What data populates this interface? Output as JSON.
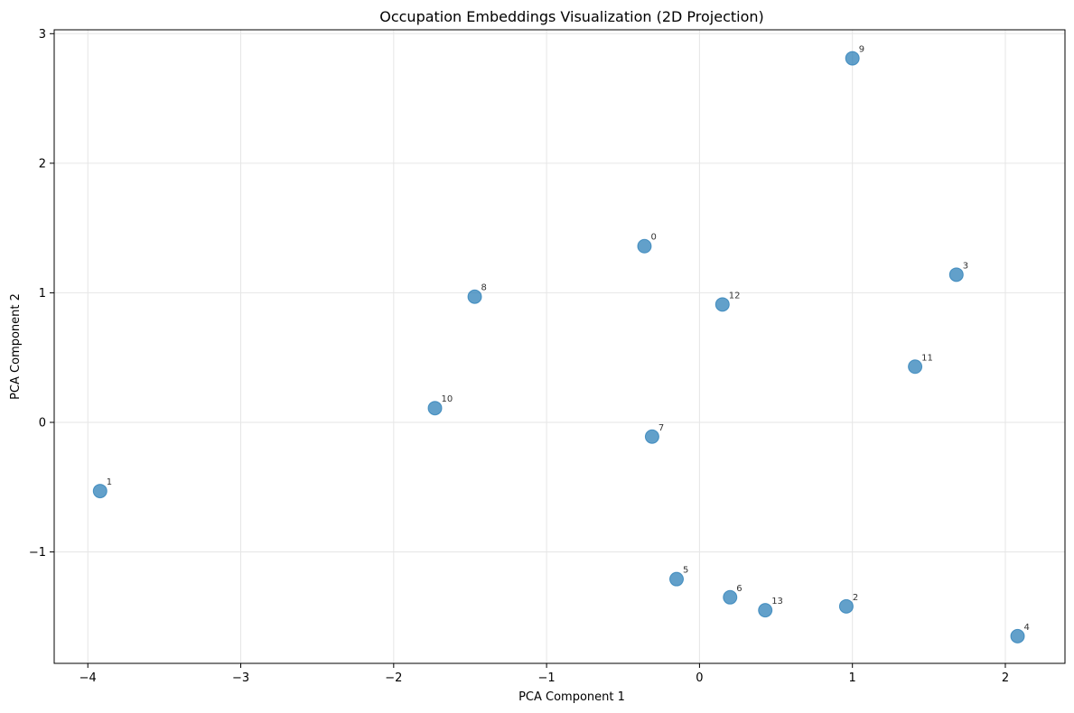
{
  "chart_data": {
    "type": "scatter",
    "title": "Occupation Embeddings Visualization (2D Projection)",
    "xlabel": "PCA Component 1",
    "ylabel": "PCA Component 2",
    "xlim": [
      -4.22,
      2.39
    ],
    "ylim": [
      -1.86,
      3.03
    ],
    "xticks": [
      -4,
      -3,
      -2,
      -1,
      0,
      1,
      2
    ],
    "yticks": [
      -1,
      0,
      1,
      2,
      3
    ],
    "xtick_labels": [
      "−4",
      "−3",
      "−2",
      "−1",
      "0",
      "1",
      "2"
    ],
    "ytick_labels": [
      "−1",
      "0",
      "1",
      "2",
      "3"
    ],
    "grid": true,
    "point_color": "#1f77b4",
    "points": [
      {
        "label": "0",
        "x": -0.36,
        "y": 1.36
      },
      {
        "label": "1",
        "x": -3.92,
        "y": -0.53
      },
      {
        "label": "2",
        "x": 0.96,
        "y": -1.42
      },
      {
        "label": "3",
        "x": 1.68,
        "y": 1.14
      },
      {
        "label": "4",
        "x": 2.08,
        "y": -1.65
      },
      {
        "label": "5",
        "x": -0.15,
        "y": -1.21
      },
      {
        "label": "6",
        "x": 0.2,
        "y": -1.35
      },
      {
        "label": "7",
        "x": -0.31,
        "y": -0.11
      },
      {
        "label": "8",
        "x": -1.47,
        "y": 0.97
      },
      {
        "label": "9",
        "x": 1.0,
        "y": 2.81
      },
      {
        "label": "10",
        "x": -1.73,
        "y": 0.11
      },
      {
        "label": "11",
        "x": 1.41,
        "y": 0.43
      },
      {
        "label": "12",
        "x": 0.15,
        "y": 0.91
      },
      {
        "label": "13",
        "x": 0.43,
        "y": -1.45
      }
    ]
  }
}
